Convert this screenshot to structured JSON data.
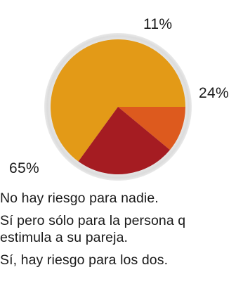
{
  "chart_data": {
    "type": "pie",
    "slices": [
      {
        "label": "65%",
        "value": 65,
        "color": "#e39a17"
      },
      {
        "label": "11%",
        "value": 11,
        "color": "#dd5a1e"
      },
      {
        "label": "24%",
        "value": 24,
        "color": "#a51c22"
      }
    ],
    "legend": [
      "No hay riesgo para nadie.",
      "Sí pero sólo para la  persona q\nestimula a su pareja.",
      "Sí, hay riesgo para los dos."
    ]
  }
}
